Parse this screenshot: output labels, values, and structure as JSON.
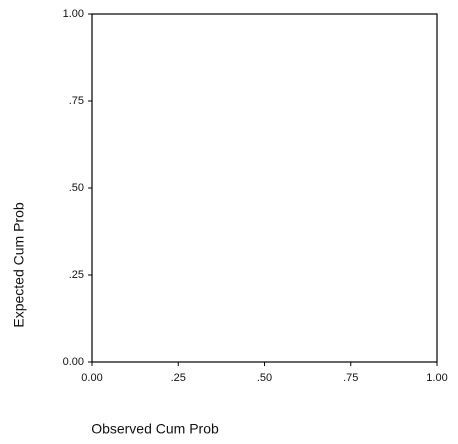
{
  "chart_data": {
    "type": "scatter",
    "xlabel": "Observed Cum Prob",
    "ylabel": "Expected Cum Prob",
    "xlim": [
      0,
      1
    ],
    "ylim": [
      0,
      1
    ],
    "xticks": [
      {
        "value": 0,
        "label": "0.00"
      },
      {
        "value": 0.25,
        "label": ".25"
      },
      {
        "value": 0.5,
        "label": ".50"
      },
      {
        "value": 0.75,
        "label": ".75"
      },
      {
        "value": 1,
        "label": "1.00"
      }
    ],
    "yticks": [
      {
        "value": 0,
        "label": "0.00"
      },
      {
        "value": 0.25,
        "label": ".25"
      },
      {
        "value": 0.5,
        "label": ".50"
      },
      {
        "value": 0.75,
        "label": ".75"
      },
      {
        "value": 1,
        "label": "1.00"
      }
    ],
    "series": []
  }
}
